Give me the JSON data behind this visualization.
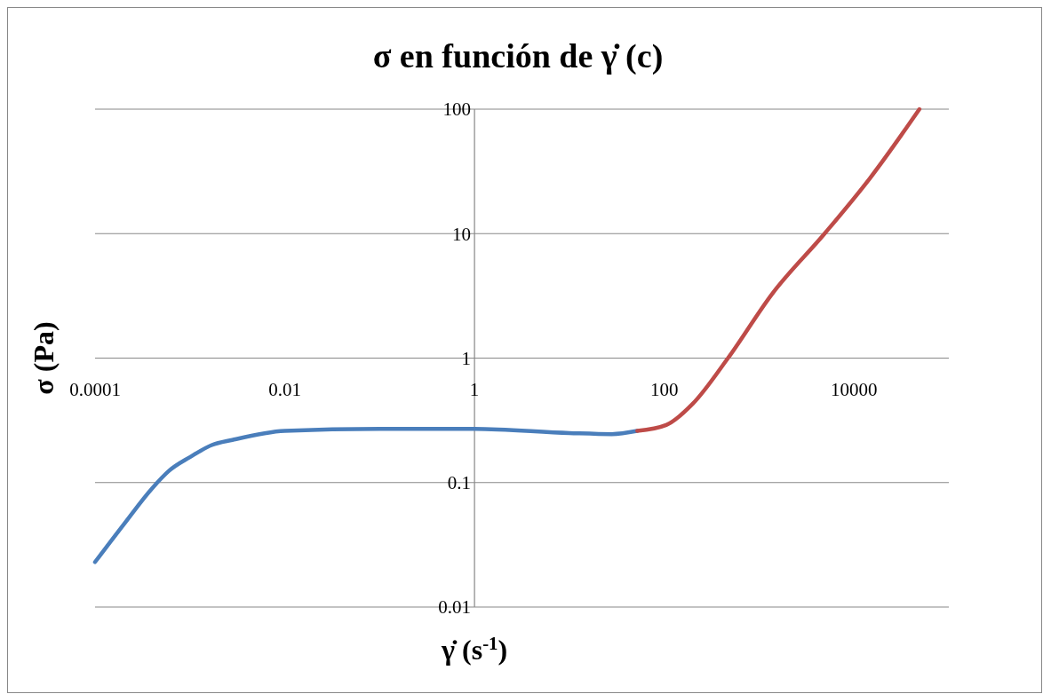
{
  "chart_data": {
    "type": "line",
    "title": "σ en función de γ̇  (c)",
    "xlabel": "γ̇ (s$^{-1}$)",
    "ylabel": "σ (Pa)",
    "log": "xy",
    "xlim": [
      0.0001,
      100000
    ],
    "xticks": [
      0.0001,
      0.01,
      1,
      100,
      10000
    ],
    "ylim": [
      0.01,
      100
    ],
    "yticks": [
      0.01,
      0.1,
      1,
      10,
      100
    ],
    "grid": "y",
    "line_style": "solid",
    "marker": "none",
    "series": [
      {
        "color": "#4a7ebb",
        "x": [
          0.0001,
          0.0002,
          0.0004,
          0.0006,
          0.001,
          0.0017,
          0.0028,
          0.01,
          0.1,
          1,
          10,
          28,
          52
        ],
        "values": [
          0.023,
          0.046,
          0.09,
          0.124,
          0.16,
          0.2,
          0.22,
          0.26,
          0.27,
          0.27,
          0.25,
          0.245,
          0.26
        ]
      },
      {
        "color": "#be4b48",
        "x": [
          52,
          105,
          200,
          470,
          1380,
          4900,
          14800,
          49000
        ],
        "values": [
          0.26,
          0.29,
          0.43,
          1,
          3.3,
          10,
          28,
          100
        ]
      }
    ]
  }
}
